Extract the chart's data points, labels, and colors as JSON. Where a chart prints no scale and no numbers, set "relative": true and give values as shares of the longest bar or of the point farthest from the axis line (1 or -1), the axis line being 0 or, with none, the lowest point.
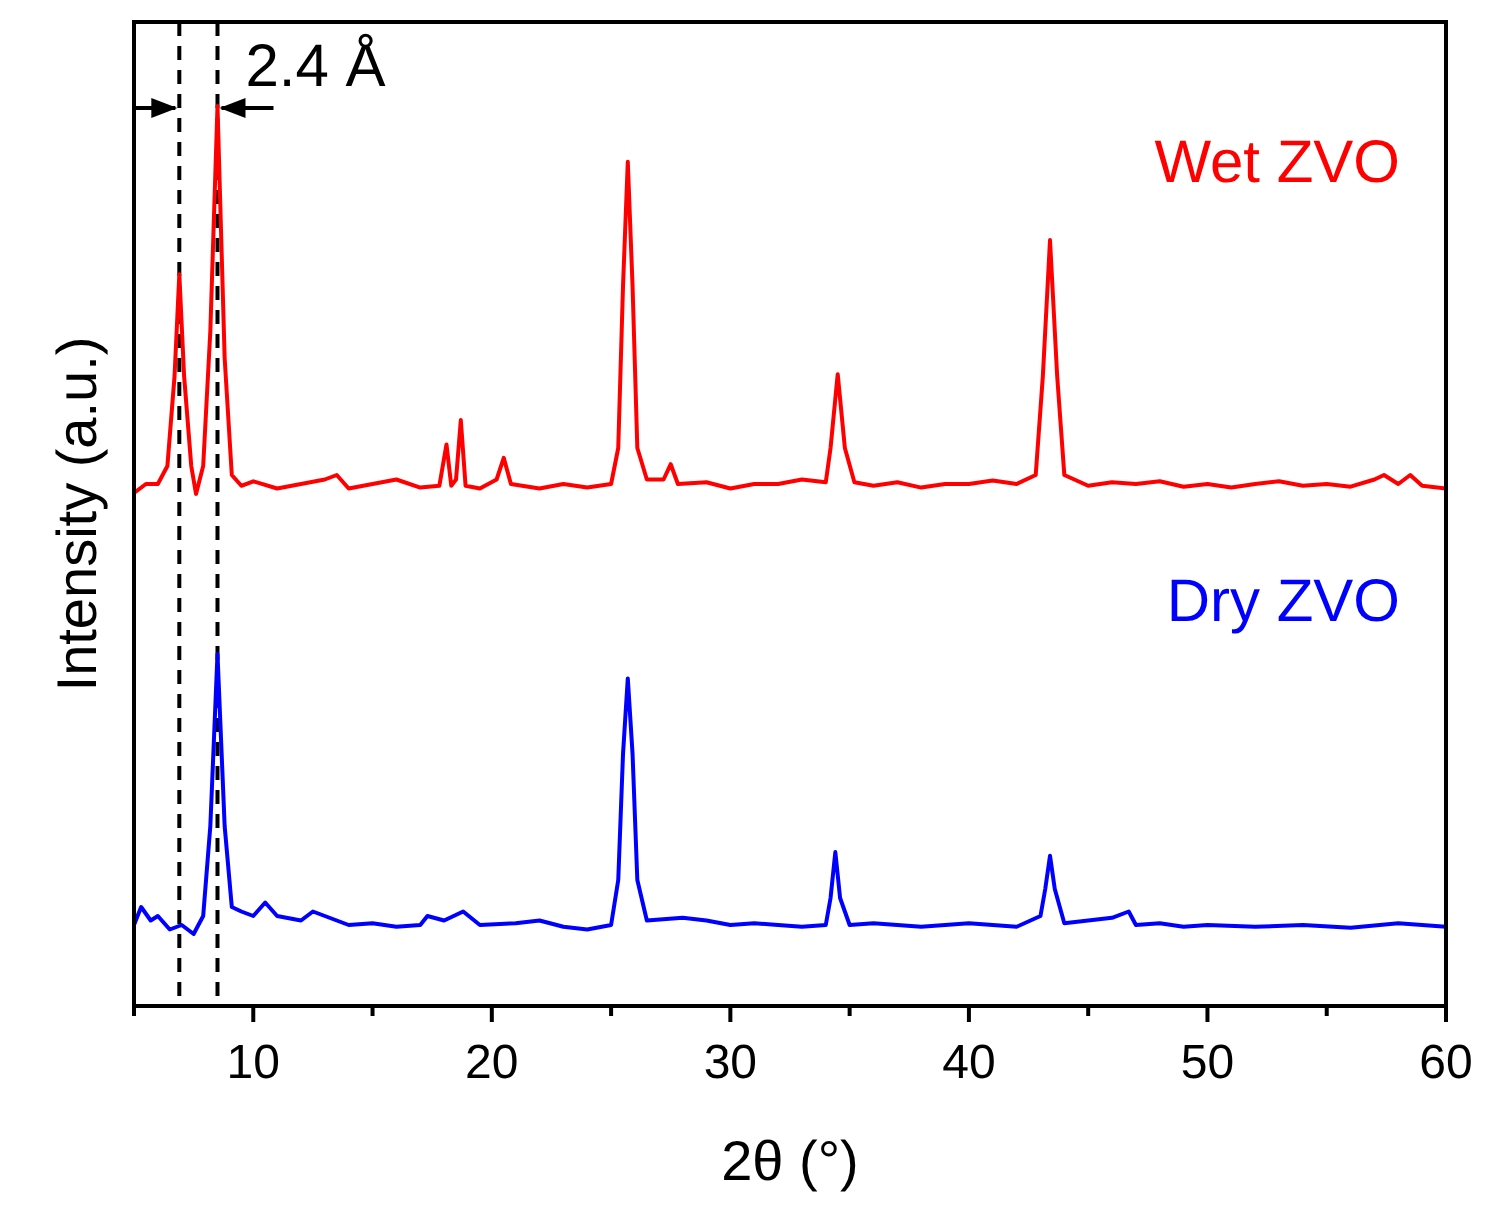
{
  "chart_data": {
    "type": "line",
    "xlabel": "2θ (°)",
    "ylabel": "Intensity (a.u.)",
    "relative": true,
    "xlim": [
      5,
      60
    ],
    "xticks": [
      {
        "value": 5,
        "label": null
      },
      10,
      {
        "value": 15,
        "label": null
      },
      20,
      {
        "value": 25,
        "label": null
      },
      30,
      {
        "value": 35,
        "label": null
      },
      40,
      {
        "value": 45,
        "label": null
      },
      50,
      {
        "value": 55,
        "label": null
      },
      60
    ],
    "ref_lines": [
      {
        "axis": "x",
        "value": 6.9,
        "color": "#000000",
        "line_style": "dashed"
      },
      {
        "axis": "x",
        "value": 8.5,
        "color": "#000000",
        "line_style": "dashed"
      }
    ],
    "annotations": [
      "2.4 Å"
    ],
    "series": [
      {
        "name": "Wet ZVO",
        "color": "#ff0000",
        "x": [
          5,
          5.5,
          6,
          6.4,
          6.7,
          6.9,
          7.1,
          7.4,
          7.6,
          7.9,
          8.2,
          8.5,
          8.8,
          9.1,
          9.5,
          10,
          11,
          12,
          13,
          13.5,
          14,
          15,
          16,
          17,
          17.8,
          18.1,
          18.3,
          18.5,
          18.7,
          18.9,
          19.5,
          20.2,
          20.5,
          20.8,
          22,
          23,
          24,
          25,
          25.3,
          25.5,
          25.7,
          25.9,
          26.1,
          26.5,
          27.2,
          27.5,
          27.8,
          29,
          30,
          31,
          32,
          33,
          34,
          34.2,
          34.5,
          34.8,
          35.2,
          36,
          37,
          38,
          39,
          40,
          41,
          42,
          42.8,
          43.1,
          43.4,
          43.7,
          44,
          45,
          46,
          47,
          48,
          49,
          50,
          51,
          52,
          53,
          54,
          55,
          56,
          57,
          57.4,
          58,
          58.5,
          59,
          60
        ],
        "values": [
          0.57,
          0.58,
          0.58,
          0.6,
          0.7,
          0.813,
          0.7,
          0.6,
          0.569,
          0.6,
          0.75,
          1.0,
          0.72,
          0.59,
          0.578,
          0.583,
          0.575,
          0.58,
          0.585,
          0.59,
          0.575,
          0.58,
          0.585,
          0.576,
          0.578,
          0.624,
          0.578,
          0.585,
          0.651,
          0.578,
          0.575,
          0.585,
          0.609,
          0.58,
          0.575,
          0.58,
          0.576,
          0.58,
          0.62,
          0.8,
          0.938,
          0.8,
          0.62,
          0.585,
          0.585,
          0.602,
          0.58,
          0.582,
          0.575,
          0.58,
          0.58,
          0.585,
          0.582,
          0.62,
          0.702,
          0.62,
          0.582,
          0.578,
          0.582,
          0.576,
          0.58,
          0.58,
          0.584,
          0.58,
          0.59,
          0.7,
          0.851,
          0.7,
          0.59,
          0.578,
          0.582,
          0.58,
          0.583,
          0.577,
          0.58,
          0.576,
          0.58,
          0.583,
          0.578,
          0.58,
          0.577,
          0.585,
          0.59,
          0.58,
          0.59,
          0.578,
          0.575
        ]
      },
      {
        "name": "Dry ZVO",
        "color": "#0000ff",
        "x": [
          5,
          5.3,
          5.7,
          6,
          6.5,
          7,
          7.5,
          7.9,
          8.2,
          8.5,
          8.8,
          9.1,
          9.5,
          10,
          10.5,
          11,
          12,
          12.5,
          13,
          14,
          15,
          16,
          17,
          17.3,
          18,
          18.8,
          19.5,
          21,
          22,
          23,
          24,
          25,
          25.3,
          25.5,
          25.7,
          25.9,
          26.1,
          26.5,
          28,
          29,
          30,
          31,
          32,
          33,
          34,
          34.2,
          34.4,
          34.6,
          35,
          36,
          37,
          38,
          39,
          40,
          41,
          42,
          43,
          43.2,
          43.4,
          43.6,
          44,
          45,
          46,
          46.7,
          47,
          48,
          49,
          50,
          52,
          54,
          56,
          58,
          60
        ],
        "values": [
          0.09,
          0.11,
          0.095,
          0.1,
          0.085,
          0.09,
          0.08,
          0.1,
          0.2,
          0.391,
          0.2,
          0.11,
          0.105,
          0.1,
          0.115,
          0.1,
          0.095,
          0.105,
          0.1,
          0.09,
          0.092,
          0.088,
          0.09,
          0.1,
          0.095,
          0.105,
          0.09,
          0.092,
          0.095,
          0.088,
          0.085,
          0.09,
          0.14,
          0.28,
          0.364,
          0.28,
          0.14,
          0.095,
          0.098,
          0.095,
          0.09,
          0.092,
          0.09,
          0.088,
          0.09,
          0.12,
          0.171,
          0.12,
          0.09,
          0.092,
          0.09,
          0.088,
          0.09,
          0.092,
          0.09,
          0.088,
          0.1,
          0.13,
          0.167,
          0.13,
          0.092,
          0.095,
          0.098,
          0.105,
          0.09,
          0.092,
          0.088,
          0.09,
          0.088,
          0.09,
          0.087,
          0.092,
          0.088
        ]
      }
    ]
  }
}
